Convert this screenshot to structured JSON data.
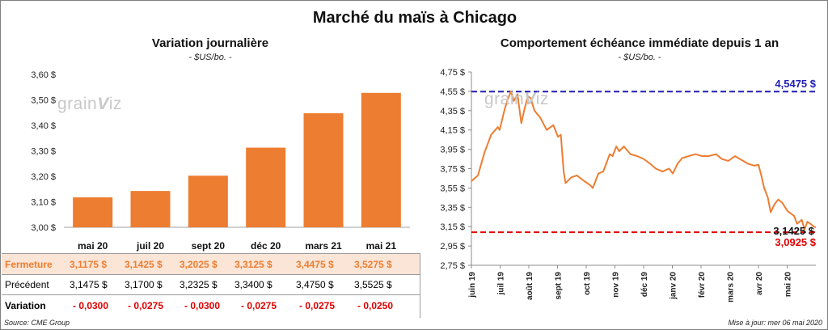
{
  "title": "Marché du maïs à Chicago",
  "watermark": {
    "text": "grainviz"
  },
  "left_panel": {
    "title": "Variation  journalière",
    "unit": "- $US/bo. -"
  },
  "right_panel": {
    "title": "Comportement  échéance immédiate depuis 1 an",
    "unit": "- $US/bo. -"
  },
  "table": {
    "rows": [
      {
        "label": "Fermeture",
        "values": [
          "3,1175  $",
          "3,1425  $",
          "3,2025  $",
          "3,3125  $",
          "3,4475  $",
          "3,5275  $"
        ]
      },
      {
        "label": "Précédent",
        "values": [
          "3,1475  $",
          "3,1700  $",
          "3,2325  $",
          "3,3400  $",
          "3,4750  $",
          "3,5525  $"
        ]
      },
      {
        "label": "Variation",
        "values": [
          "- 0,0300",
          "- 0,0275",
          "- 0,0300",
          "- 0,0275",
          "- 0,0275",
          "- 0,0250"
        ]
      }
    ]
  },
  "footer": {
    "source": "Source: CME Group",
    "updated": "Mise à jour: mer 06 mai 2020"
  },
  "colors": {
    "bar": "#ed7d31",
    "line": "#ed7d31",
    "high": "#1f1fb4",
    "low": "#e00000",
    "fermeture_bg": "#fbe5d6",
    "neg": "#e00000"
  },
  "chart_data": [
    {
      "type": "bar",
      "categories": [
        "mai 20",
        "juil 20",
        "sept 20",
        "déc 20",
        "mars 21",
        "mai 21"
      ],
      "values": [
        3.1175,
        3.1425,
        3.2025,
        3.3125,
        3.4475,
        3.5275
      ],
      "ylim": [
        3.0,
        3.6
      ],
      "yticks": [
        "3,00 $",
        "3,10 $",
        "3,20 $",
        "3,30 $",
        "3,40 $",
        "3,50 $",
        "3,60 $"
      ],
      "grid": false
    },
    {
      "type": "line",
      "x_labels": [
        "juin 19",
        "juil 19",
        "août 19",
        "sept 19",
        "oct 19",
        "nov 19",
        "déc 19",
        "janv 20",
        "févr 20",
        "mars 20",
        "avr 20",
        "mai 20"
      ],
      "x_range": [
        "2019-05-06",
        "2020-05-06"
      ],
      "ylim": [
        2.75,
        4.75
      ],
      "yticks": [
        "2,75 $",
        "2,95 $",
        "3,15 $",
        "3,35 $",
        "3,55 $",
        "3,75 $",
        "3,95 $",
        "4,15 $",
        "4,35 $",
        "4,55 $",
        "4,75 $"
      ],
      "series": [
        {
          "points": [
            [
              "2019-05-06",
              3.62
            ],
            [
              "2019-05-13",
              3.68
            ],
            [
              "2019-05-20",
              3.92
            ],
            [
              "2019-05-27",
              4.1
            ],
            [
              "2019-06-03",
              4.18
            ],
            [
              "2019-06-05",
              4.15
            ],
            [
              "2019-06-10",
              4.35
            ],
            [
              "2019-06-13",
              4.45
            ],
            [
              "2019-06-17",
              4.55
            ],
            [
              "2019-06-20",
              4.45
            ],
            [
              "2019-06-24",
              4.52
            ],
            [
              "2019-06-28",
              4.22
            ],
            [
              "2019-07-01",
              4.35
            ],
            [
              "2019-07-05",
              4.5
            ],
            [
              "2019-07-08",
              4.48
            ],
            [
              "2019-07-12",
              4.35
            ],
            [
              "2019-07-18",
              4.28
            ],
            [
              "2019-07-25",
              4.15
            ],
            [
              "2019-08-01",
              4.2
            ],
            [
              "2019-08-06",
              4.08
            ],
            [
              "2019-08-09",
              4.1
            ],
            [
              "2019-08-12",
              3.72
            ],
            [
              "2019-08-14",
              3.6
            ],
            [
              "2019-08-20",
              3.66
            ],
            [
              "2019-08-26",
              3.68
            ],
            [
              "2019-09-03",
              3.62
            ],
            [
              "2019-09-09",
              3.58
            ],
            [
              "2019-09-12",
              3.55
            ],
            [
              "2019-09-18",
              3.7
            ],
            [
              "2019-09-23",
              3.72
            ],
            [
              "2019-09-30",
              3.9
            ],
            [
              "2019-10-03",
              3.88
            ],
            [
              "2019-10-07",
              3.98
            ],
            [
              "2019-10-10",
              3.93
            ],
            [
              "2019-10-15",
              3.98
            ],
            [
              "2019-10-22",
              3.9
            ],
            [
              "2019-10-29",
              3.88
            ],
            [
              "2019-11-05",
              3.85
            ],
            [
              "2019-11-12",
              3.8
            ],
            [
              "2019-11-18",
              3.75
            ],
            [
              "2019-11-25",
              3.72
            ],
            [
              "2019-12-02",
              3.75
            ],
            [
              "2019-12-06",
              3.7
            ],
            [
              "2019-12-11",
              3.8
            ],
            [
              "2019-12-16",
              3.86
            ],
            [
              "2019-12-23",
              3.88
            ],
            [
              "2019-12-30",
              3.9
            ],
            [
              "2020-01-06",
              3.88
            ],
            [
              "2020-01-13",
              3.88
            ],
            [
              "2020-01-21",
              3.9
            ],
            [
              "2020-01-27",
              3.85
            ],
            [
              "2020-02-03",
              3.83
            ],
            [
              "2020-02-10",
              3.88
            ],
            [
              "2020-02-17",
              3.84
            ],
            [
              "2020-02-24",
              3.8
            ],
            [
              "2020-03-02",
              3.78
            ],
            [
              "2020-03-06",
              3.79
            ],
            [
              "2020-03-09",
              3.68
            ],
            [
              "2020-03-12",
              3.55
            ],
            [
              "2020-03-16",
              3.45
            ],
            [
              "2020-03-19",
              3.3
            ],
            [
              "2020-03-23",
              3.38
            ],
            [
              "2020-03-27",
              3.43
            ],
            [
              "2020-03-31",
              3.4
            ],
            [
              "2020-04-06",
              3.31
            ],
            [
              "2020-04-13",
              3.26
            ],
            [
              "2020-04-16",
              3.18
            ],
            [
              "2020-04-21",
              3.22
            ],
            [
              "2020-04-24",
              3.12
            ],
            [
              "2020-04-27",
              3.2
            ],
            [
              "2020-04-30",
              3.18
            ],
            [
              "2020-05-04",
              3.15
            ],
            [
              "2020-05-06",
              3.1425
            ]
          ]
        }
      ],
      "reference_lines": [
        {
          "value": 4.5475,
          "label": "4,5475 $",
          "color": "#1f1fb4"
        },
        {
          "value": 3.0925,
          "label": "3,0925 $",
          "color": "#e00000"
        }
      ],
      "last_value_label": "3,1425 $"
    }
  ]
}
